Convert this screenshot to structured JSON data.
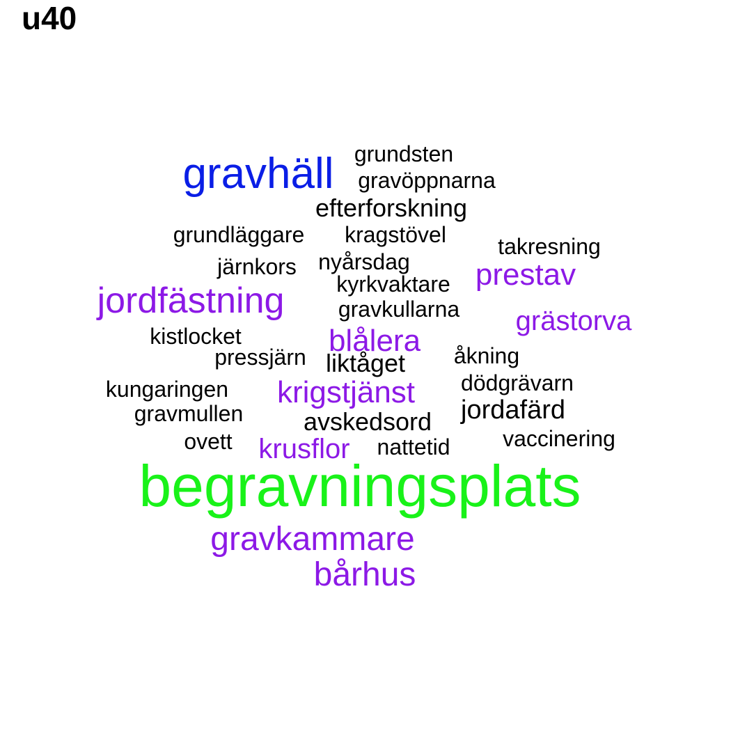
{
  "title": "u40",
  "colors": {
    "black": "#000000",
    "blue": "#0a1ee6",
    "purple": "#8c19e6",
    "green": "#19f219"
  },
  "words": [
    {
      "text": "grundsten",
      "color": "black"
    },
    {
      "text": "gravhäll",
      "color": "blue"
    },
    {
      "text": "gravöppnarna",
      "color": "black"
    },
    {
      "text": "efterforskning",
      "color": "black"
    },
    {
      "text": "grundläggare",
      "color": "black"
    },
    {
      "text": "kragstövel",
      "color": "black"
    },
    {
      "text": "takresning",
      "color": "black"
    },
    {
      "text": "järnkors",
      "color": "black"
    },
    {
      "text": "nyårsdag",
      "color": "black"
    },
    {
      "text": "prestav",
      "color": "purple"
    },
    {
      "text": "kyrkvaktare",
      "color": "black"
    },
    {
      "text": "jordfästning",
      "color": "purple"
    },
    {
      "text": "gravkullarna",
      "color": "black"
    },
    {
      "text": "grästorva",
      "color": "purple"
    },
    {
      "text": "kistlocket",
      "color": "black"
    },
    {
      "text": "blålera",
      "color": "purple"
    },
    {
      "text": "pressjärn",
      "color": "black"
    },
    {
      "text": "åkning",
      "color": "black"
    },
    {
      "text": "liktåget",
      "color": "black"
    },
    {
      "text": "dödgrävarn",
      "color": "black"
    },
    {
      "text": "kungaringen",
      "color": "black"
    },
    {
      "text": "krigstjänst",
      "color": "purple"
    },
    {
      "text": "jordafärd",
      "color": "black"
    },
    {
      "text": "gravmullen",
      "color": "black"
    },
    {
      "text": "avskedsord",
      "color": "black"
    },
    {
      "text": "vaccinering",
      "color": "black"
    },
    {
      "text": "ovett",
      "color": "black"
    },
    {
      "text": "krusflor",
      "color": "purple"
    },
    {
      "text": "nattetid",
      "color": "black"
    },
    {
      "text": "begravningsplats",
      "color": "green"
    },
    {
      "text": "gravkammare",
      "color": "purple"
    },
    {
      "text": "bårhus",
      "color": "purple"
    }
  ]
}
